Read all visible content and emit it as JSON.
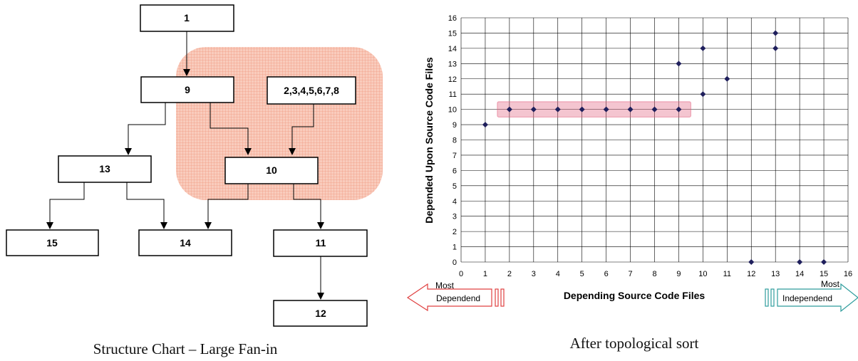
{
  "left_diagram": {
    "nodes": [
      {
        "id": "n1",
        "label": "1"
      },
      {
        "id": "n9",
        "label": "9"
      },
      {
        "id": "n2to8",
        "label": "2,3,4,5,6,7,8"
      },
      {
        "id": "n13",
        "label": "13"
      },
      {
        "id": "n10",
        "label": "10"
      },
      {
        "id": "n15",
        "label": "15"
      },
      {
        "id": "n14",
        "label": "14"
      },
      {
        "id": "n11",
        "label": "11"
      },
      {
        "id": "n12",
        "label": "12"
      }
    ],
    "caption": "Structure Chart – Large Fan-in",
    "highlight_color": "#f4a08a"
  },
  "chart_data": {
    "type": "scatter",
    "title": "",
    "caption": "After topological sort",
    "xlabel": "Depending Source Code Files",
    "ylabel": "Depended Upon Source Code Files",
    "xlim": [
      0,
      16
    ],
    "ylim": [
      0,
      16
    ],
    "xticks": [
      "0",
      "1",
      "2",
      "3",
      "4",
      "5",
      "6",
      "7",
      "8",
      "9",
      "10",
      "11",
      "12",
      "13",
      "14",
      "15",
      "16"
    ],
    "yticks": [
      "0",
      "1",
      "2",
      "3",
      "4",
      "5",
      "6",
      "7",
      "8",
      "9",
      "10",
      "11",
      "12",
      "13",
      "14",
      "15",
      "16"
    ],
    "grid": true,
    "marker_color": "#1f1f5c",
    "highlight_color": "#e05a78",
    "highlight_range": {
      "x": [
        1.5,
        9.5
      ],
      "y": [
        9.5,
        10.5
      ]
    },
    "points": [
      {
        "x": 1,
        "y": 9
      },
      {
        "x": 2,
        "y": 10
      },
      {
        "x": 3,
        "y": 10
      },
      {
        "x": 4,
        "y": 10
      },
      {
        "x": 5,
        "y": 10
      },
      {
        "x": 6,
        "y": 10
      },
      {
        "x": 7,
        "y": 10
      },
      {
        "x": 8,
        "y": 10
      },
      {
        "x": 9,
        "y": 10
      },
      {
        "x": 9,
        "y": 13
      },
      {
        "x": 10,
        "y": 11
      },
      {
        "x": 10,
        "y": 14
      },
      {
        "x": 11,
        "y": 12
      },
      {
        "x": 12,
        "y": 0
      },
      {
        "x": 13,
        "y": 14
      },
      {
        "x": 13,
        "y": 15
      },
      {
        "x": 14,
        "y": 0
      },
      {
        "x": 15,
        "y": 0
      }
    ],
    "left_arrow": {
      "line1": "Most",
      "line2": "Dependend",
      "color": "#e04040"
    },
    "right_arrow": {
      "line1": "Most",
      "line2": "Independend",
      "color": "#2e9c9c"
    }
  }
}
